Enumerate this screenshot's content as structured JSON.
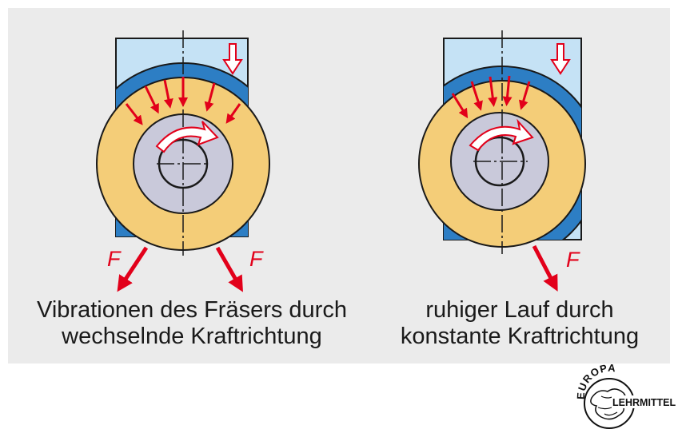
{
  "left_figure": {
    "force_label_1": "F",
    "force_label_2": "F",
    "caption_line1": "Vibrationen des Fräsers durch",
    "caption_line2": "wechselnde Kraftrichtung"
  },
  "right_figure": {
    "force_label": "F",
    "caption_line1": "ruhiger Lauf durch",
    "caption_line2": "konstante Kraftrichtung"
  },
  "logo": {
    "top_text": "EUROPA",
    "side_text": "LEHRMITTEL"
  },
  "colors": {
    "background_panel": "#ebebeb",
    "workpiece": "#c5e2f5",
    "cutter_ring": "#f4cd78",
    "hub": "#c9c9da",
    "chip_band": "#2d7ec4",
    "force_arrow": "#e2001a",
    "outline": "#1a1a1a"
  }
}
